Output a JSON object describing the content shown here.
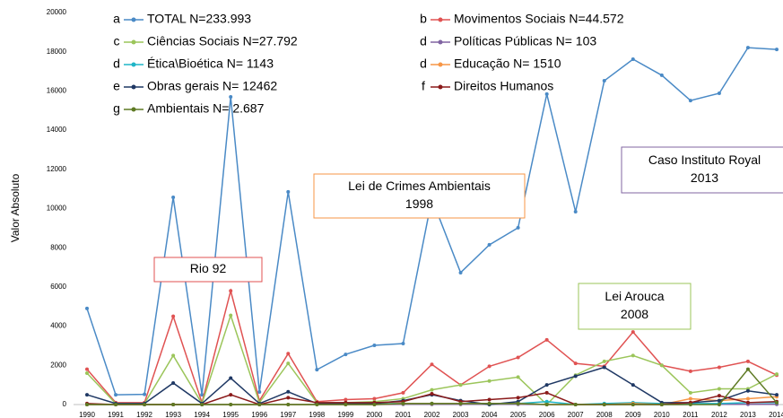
{
  "chart_data": {
    "type": "line",
    "y_label": "Valor Absoluto",
    "categories": [
      "1990",
      "1991",
      "1992",
      "1993",
      "1994",
      "1995",
      "1996",
      "1997",
      "1998",
      "1999",
      "2000",
      "2001",
      "2002",
      "2003",
      "2004",
      "2005",
      "2006",
      "2007",
      "2008",
      "2009",
      "2010",
      "2011",
      "2012",
      "2013",
      "2014"
    ],
    "ylim": [
      0,
      20000
    ],
    "yticks": [
      0,
      2000,
      4000,
      6000,
      8000,
      10000,
      12000,
      14000,
      16000,
      18000,
      20000
    ],
    "series": [
      {
        "letter": "a",
        "name": "TOTAL N=233.993",
        "color": "#4a8ac6",
        "values": [
          4900,
          500,
          520,
          10570,
          500,
          15700,
          640,
          10850,
          1780,
          2560,
          3020,
          3110,
          10500,
          6730,
          8150,
          9020,
          15840,
          9840,
          16520,
          17620,
          16800,
          15510,
          15880,
          18210,
          18120
        ]
      },
      {
        "letter": "b",
        "name": "Movimentos Sociais N=44.572",
        "color": "#e05252",
        "values": [
          1800,
          100,
          100,
          4500,
          100,
          5800,
          200,
          2600,
          150,
          250,
          300,
          600,
          2050,
          1000,
          1950,
          2400,
          3300,
          2100,
          1950,
          3700,
          2000,
          1700,
          1900,
          2200,
          1500
        ]
      },
      {
        "letter": "c",
        "name": "Ciências Sociais N=27.792",
        "color": "#9bc55a",
        "values": [
          1600,
          50,
          50,
          2500,
          50,
          4550,
          100,
          2100,
          100,
          100,
          150,
          300,
          750,
          1000,
          1200,
          1400,
          0,
          1500,
          2200,
          2500,
          2000,
          600,
          800,
          800,
          1550
        ]
      },
      {
        "letter": "d",
        "name": "Políticas Públicas N= 103",
        "color": "#8064a2",
        "values": [
          0,
          0,
          0,
          0,
          0,
          0,
          0,
          0,
          0,
          0,
          0,
          10,
          10,
          10,
          10,
          10,
          0,
          0,
          0,
          10,
          0,
          10,
          10,
          10,
          10
        ]
      },
      {
        "letter": "d",
        "name": "Ética\\Bioética N= 1143",
        "color": "#1fb5c7",
        "values": [
          0,
          0,
          0,
          0,
          0,
          0,
          0,
          0,
          0,
          50,
          50,
          50,
          50,
          50,
          50,
          50,
          150,
          0,
          50,
          100,
          50,
          50,
          50,
          100,
          100
        ]
      },
      {
        "letter": "d",
        "name": "Educação N= 1510",
        "color": "#f79646",
        "values": [
          0,
          0,
          0,
          0,
          0,
          0,
          0,
          0,
          0,
          0,
          0,
          50,
          50,
          50,
          50,
          50,
          0,
          0,
          0,
          50,
          0,
          300,
          200,
          300,
          400
        ]
      },
      {
        "letter": "e",
        "name": "Obras gerais N= 12462",
        "color": "#1f3864",
        "values": [
          500,
          50,
          50,
          1100,
          50,
          1350,
          50,
          650,
          50,
          50,
          50,
          200,
          500,
          200,
          0,
          150,
          1000,
          1450,
          1900,
          1000,
          100,
          100,
          200,
          700,
          500
        ]
      },
      {
        "letter": "f",
        "name": "Direitos Humanos",
        "color": "#8b1a1a",
        "values": [
          50,
          0,
          0,
          0,
          0,
          500,
          0,
          350,
          100,
          100,
          100,
          150,
          550,
          150,
          250,
          350,
          600,
          0,
          0,
          0,
          0,
          100,
          450,
          100,
          150
        ]
      },
      {
        "letter": "g",
        "name": "Ambientais N= 2.687",
        "color": "#5e7a24",
        "values": [
          0,
          0,
          0,
          0,
          0,
          0,
          0,
          0,
          0,
          0,
          0,
          50,
          50,
          50,
          50,
          50,
          0,
          0,
          0,
          0,
          0,
          0,
          0,
          1800,
          100
        ]
      }
    ],
    "annotations": [
      {
        "lines": [
          "Rio 92"
        ],
        "color": "#e05252"
      },
      {
        "lines": [
          "Lei de Crimes Ambientais",
          "1998"
        ],
        "color": "#f79646"
      },
      {
        "lines": [
          "Caso Instituto Royal",
          "2013"
        ],
        "color": "#8064a2"
      },
      {
        "lines": [
          "Lei Arouca",
          "2008"
        ],
        "color": "#9bc55a"
      }
    ]
  }
}
